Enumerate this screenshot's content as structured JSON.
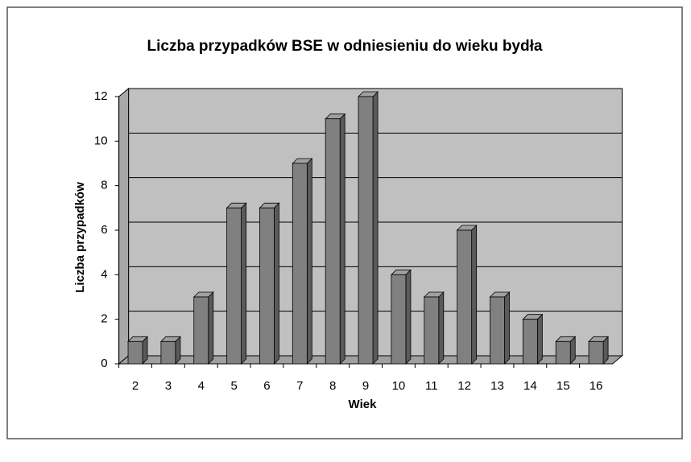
{
  "chart_data": {
    "type": "bar3d",
    "title": "Liczba przypadków BSE w odniesieniu do wieku bydła",
    "xlabel": "Wiek",
    "ylabel": "Liczba przypadków",
    "categories": [
      "2",
      "3",
      "4",
      "5",
      "6",
      "7",
      "8",
      "9",
      "10",
      "11",
      "12",
      "13",
      "14",
      "15",
      "16"
    ],
    "values": [
      1,
      1,
      3,
      7,
      7,
      9,
      11,
      12,
      4,
      3,
      6,
      3,
      2,
      1,
      1
    ],
    "color": "#808080",
    "ylim": [
      0,
      12
    ],
    "yticks": [
      0,
      2,
      4,
      6,
      8,
      10,
      12
    ],
    "grid": true
  }
}
